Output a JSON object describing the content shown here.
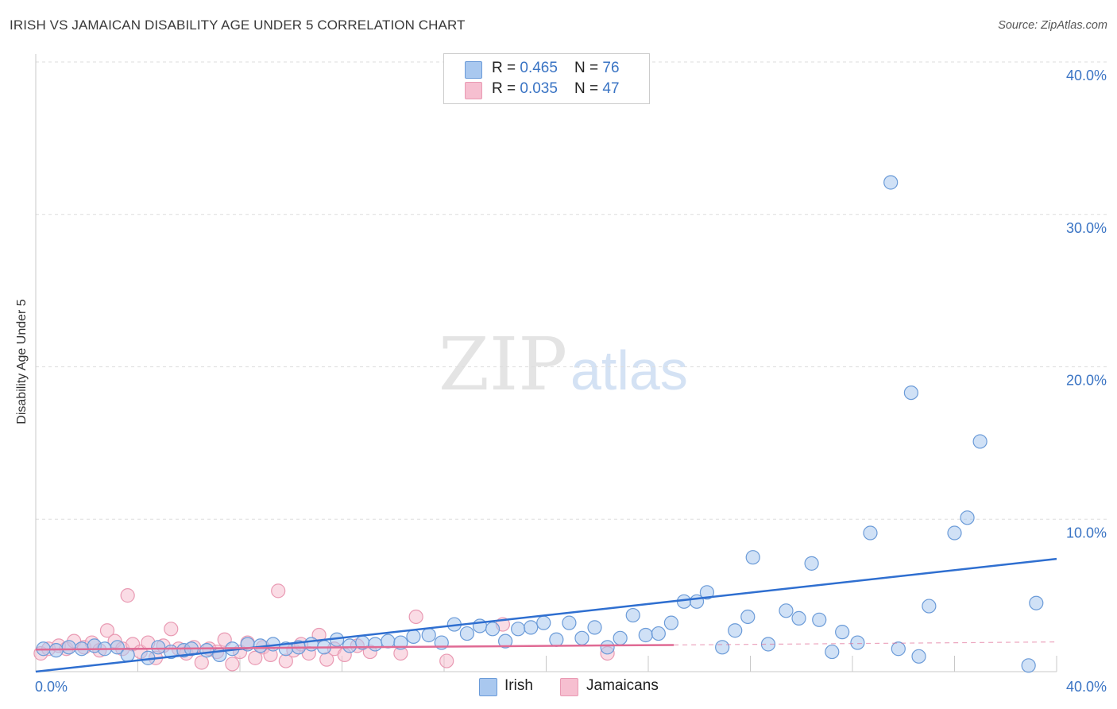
{
  "header": {
    "title": "IRISH VS JAMAICAN DISABILITY AGE UNDER 5 CORRELATION CHART",
    "source": "Source: ZipAtlas.com"
  },
  "watermark": {
    "zip": "ZIP",
    "atlas": "atlas"
  },
  "legend": {
    "irish": {
      "r_label": "R = ",
      "r_value": "0.465",
      "n_label": "N = ",
      "n_value": "76"
    },
    "jamaicans": {
      "r_label": "R = ",
      "r_value": "0.035",
      "n_label": "N = ",
      "n_value": "47"
    }
  },
  "colors": {
    "irish_fill": "#a9c8ef",
    "irish_stroke": "#6b9bd8",
    "irish_line": "#2f6fd0",
    "jamaicans_fill": "#f6bfd0",
    "jamaicans_stroke": "#e99ab3",
    "jamaicans_line": "#e06a94",
    "tick_label": "#3a74c4",
    "grid": "#dddddd"
  },
  "chart_data": {
    "type": "scatter",
    "title": "IRISH VS JAMAICAN DISABILITY AGE UNDER 5 CORRELATION CHART",
    "xlabel": "",
    "ylabel": "Disability Age Under 5",
    "xlim": [
      0,
      40
    ],
    "ylim": [
      0,
      40
    ],
    "x_tick_labels": [
      "0.0%",
      "40.0%"
    ],
    "y_ticks": [
      10,
      20,
      30,
      40
    ],
    "y_tick_labels": [
      "10.0%",
      "20.0%",
      "30.0%",
      "40.0%"
    ],
    "grid": "horizontal dashed",
    "legend_position": "top-center and bottom",
    "series": [
      {
        "name": "Irish",
        "r": 0.465,
        "n": 76,
        "trend": {
          "x": [
            0,
            40
          ],
          "y": [
            0.0,
            7.4
          ]
        },
        "points": [
          [
            0.3,
            1.5
          ],
          [
            0.8,
            1.4
          ],
          [
            1.3,
            1.6
          ],
          [
            1.8,
            1.5
          ],
          [
            2.3,
            1.7
          ],
          [
            2.7,
            1.5
          ],
          [
            3.2,
            1.6
          ],
          [
            3.6,
            1.1
          ],
          [
            4.4,
            0.9
          ],
          [
            4.8,
            1.6
          ],
          [
            5.3,
            1.3
          ],
          [
            5.8,
            1.4
          ],
          [
            6.1,
            1.5
          ],
          [
            6.7,
            1.4
          ],
          [
            7.2,
            1.1
          ],
          [
            7.7,
            1.5
          ],
          [
            8.3,
            1.8
          ],
          [
            8.8,
            1.7
          ],
          [
            9.3,
            1.8
          ],
          [
            9.8,
            1.5
          ],
          [
            10.3,
            1.6
          ],
          [
            10.8,
            1.8
          ],
          [
            11.3,
            1.6
          ],
          [
            11.8,
            2.1
          ],
          [
            12.3,
            1.7
          ],
          [
            12.8,
            1.9
          ],
          [
            13.3,
            1.8
          ],
          [
            13.8,
            2.0
          ],
          [
            14.3,
            1.9
          ],
          [
            14.8,
            2.3
          ],
          [
            15.4,
            2.4
          ],
          [
            15.9,
            1.9
          ],
          [
            16.4,
            3.1
          ],
          [
            16.9,
            2.5
          ],
          [
            17.4,
            3.0
          ],
          [
            17.9,
            2.8
          ],
          [
            18.4,
            2.0
          ],
          [
            18.9,
            2.8
          ],
          [
            19.4,
            2.9
          ],
          [
            19.9,
            3.2
          ],
          [
            20.4,
            2.1
          ],
          [
            20.9,
            3.2
          ],
          [
            21.4,
            2.2
          ],
          [
            21.9,
            2.9
          ],
          [
            22.4,
            1.6
          ],
          [
            22.9,
            2.2
          ],
          [
            23.4,
            3.7
          ],
          [
            23.9,
            2.4
          ],
          [
            24.4,
            2.5
          ],
          [
            24.9,
            3.2
          ],
          [
            25.4,
            4.6
          ],
          [
            25.9,
            4.6
          ],
          [
            26.3,
            5.2
          ],
          [
            26.9,
            1.6
          ],
          [
            27.4,
            2.7
          ],
          [
            27.9,
            3.6
          ],
          [
            28.1,
            7.5
          ],
          [
            28.7,
            1.8
          ],
          [
            29.4,
            4.0
          ],
          [
            29.9,
            3.5
          ],
          [
            30.4,
            7.1
          ],
          [
            30.7,
            3.4
          ],
          [
            31.2,
            1.3
          ],
          [
            31.6,
            2.6
          ],
          [
            32.2,
            1.9
          ],
          [
            32.7,
            9.1
          ],
          [
            33.5,
            32.1
          ],
          [
            33.8,
            1.5
          ],
          [
            34.3,
            18.3
          ],
          [
            34.6,
            1.0
          ],
          [
            35.0,
            4.3
          ],
          [
            36.0,
            9.1
          ],
          [
            36.5,
            10.1
          ],
          [
            37.0,
            15.1
          ],
          [
            38.9,
            0.4
          ],
          [
            39.2,
            4.5
          ]
        ]
      },
      {
        "name": "Jamaicans",
        "r": 0.035,
        "n": 47,
        "trend": {
          "x": [
            0,
            25
          ],
          "y": [
            1.45,
            1.75
          ]
        },
        "trend_extension": {
          "x": [
            25,
            40
          ],
          "y": [
            1.75,
            1.95
          ]
        },
        "points": [
          [
            0.2,
            1.2
          ],
          [
            0.5,
            1.5
          ],
          [
            0.9,
            1.7
          ],
          [
            1.2,
            1.5
          ],
          [
            1.5,
            2.0
          ],
          [
            1.9,
            1.6
          ],
          [
            2.2,
            1.9
          ],
          [
            2.5,
            1.4
          ],
          [
            2.8,
            2.7
          ],
          [
            3.1,
            2.0
          ],
          [
            3.4,
            1.5
          ],
          [
            3.8,
            1.8
          ],
          [
            4.1,
            1.3
          ],
          [
            4.4,
            1.9
          ],
          [
            4.7,
            0.9
          ],
          [
            5.0,
            1.7
          ],
          [
            5.3,
            2.8
          ],
          [
            5.6,
            1.5
          ],
          [
            5.9,
            1.2
          ],
          [
            6.2,
            1.6
          ],
          [
            6.5,
            0.6
          ],
          [
            6.8,
            1.5
          ],
          [
            7.1,
            1.3
          ],
          [
            7.4,
            2.1
          ],
          [
            7.7,
            0.5
          ],
          [
            8.0,
            1.3
          ],
          [
            8.3,
            1.9
          ],
          [
            8.6,
            0.9
          ],
          [
            8.9,
            1.6
          ],
          [
            9.2,
            1.1
          ],
          [
            9.5,
            5.3
          ],
          [
            9.8,
            0.7
          ],
          [
            10.1,
            1.4
          ],
          [
            10.4,
            1.8
          ],
          [
            10.7,
            1.2
          ],
          [
            11.1,
            2.4
          ],
          [
            11.4,
            0.8
          ],
          [
            11.7,
            1.5
          ],
          [
            12.1,
            1.1
          ],
          [
            12.6,
            1.7
          ],
          [
            13.1,
            1.3
          ],
          [
            14.3,
            1.2
          ],
          [
            14.9,
            3.6
          ],
          [
            16.1,
            0.7
          ],
          [
            18.3,
            3.1
          ],
          [
            22.4,
            1.2
          ],
          [
            3.6,
            5.0
          ]
        ]
      }
    ]
  },
  "bottom_legend": {
    "irish": "Irish",
    "jamaicans": "Jamaicans"
  }
}
